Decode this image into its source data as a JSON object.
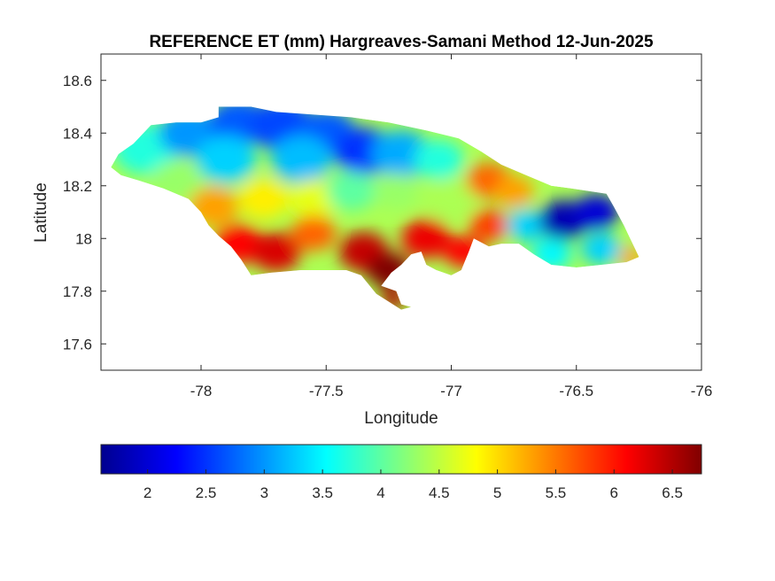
{
  "chart_data": {
    "type": "heatmap",
    "title": "REFERENCE ET (mm) Hargreaves-Samani Method  12-Jun-2025",
    "xlabel": "Longitude",
    "ylabel": "Latitude",
    "xlim": [
      -78.4,
      -76
    ],
    "ylim": [
      17.5,
      18.7
    ],
    "x_ticks": [
      "-78",
      "-77.5",
      "-77",
      "-76.5",
      "-76"
    ],
    "y_ticks": [
      "18.6",
      "18.4",
      "18.2",
      "18",
      "17.8",
      "17.6"
    ],
    "colormap": "jet",
    "colorbar": {
      "range": [
        1.6,
        6.75
      ],
      "ticks": [
        "2",
        "2.5",
        "3",
        "3.5",
        "4",
        "4.5",
        "5",
        "5.5",
        "6",
        "6.5"
      ],
      "location": "bottom"
    },
    "region_outline": [
      [
        -78.36,
        18.27
      ],
      [
        -78.33,
        18.32
      ],
      [
        -78.27,
        18.36
      ],
      [
        -78.2,
        18.43
      ],
      [
        -78.1,
        18.44
      ],
      [
        -78.0,
        18.44
      ],
      [
        -77.93,
        18.46
      ],
      [
        -77.93,
        18.5
      ],
      [
        -77.8,
        18.5
      ],
      [
        -77.7,
        18.48
      ],
      [
        -77.55,
        18.47
      ],
      [
        -77.4,
        18.46
      ],
      [
        -77.25,
        18.44
      ],
      [
        -77.1,
        18.41
      ],
      [
        -76.97,
        18.38
      ],
      [
        -76.88,
        18.33
      ],
      [
        -76.8,
        18.28
      ],
      [
        -76.7,
        18.24
      ],
      [
        -76.6,
        18.2
      ],
      [
        -76.52,
        18.19
      ],
      [
        -76.38,
        18.17
      ],
      [
        -76.35,
        18.12
      ],
      [
        -76.31,
        18.05
      ],
      [
        -76.28,
        17.99
      ],
      [
        -76.25,
        17.93
      ],
      [
        -76.3,
        17.91
      ],
      [
        -76.4,
        17.9
      ],
      [
        -76.5,
        17.89
      ],
      [
        -76.6,
        17.9
      ],
      [
        -76.67,
        17.94
      ],
      [
        -76.73,
        17.98
      ],
      [
        -76.8,
        17.98
      ],
      [
        -76.85,
        17.97
      ],
      [
        -76.91,
        18.0
      ],
      [
        -76.93,
        17.95
      ],
      [
        -76.96,
        17.88
      ],
      [
        -77.0,
        17.86
      ],
      [
        -77.06,
        17.88
      ],
      [
        -77.1,
        17.9
      ],
      [
        -77.12,
        17.95
      ],
      [
        -77.16,
        17.94
      ],
      [
        -77.2,
        17.9
      ],
      [
        -77.24,
        17.87
      ],
      [
        -77.28,
        17.82
      ],
      [
        -77.22,
        17.8
      ],
      [
        -77.2,
        17.75
      ],
      [
        -77.16,
        17.74
      ],
      [
        -77.2,
        17.73
      ],
      [
        -77.25,
        17.76
      ],
      [
        -77.3,
        17.79
      ],
      [
        -77.36,
        17.86
      ],
      [
        -77.42,
        17.88
      ],
      [
        -77.5,
        17.88
      ],
      [
        -77.6,
        17.88
      ],
      [
        -77.72,
        17.87
      ],
      [
        -77.8,
        17.86
      ],
      [
        -77.84,
        17.92
      ],
      [
        -77.88,
        17.97
      ],
      [
        -77.93,
        18.01
      ],
      [
        -77.97,
        18.05
      ],
      [
        -78.0,
        18.1
      ],
      [
        -78.05,
        18.15
      ],
      [
        -78.15,
        18.19
      ],
      [
        -78.25,
        18.22
      ],
      [
        -78.32,
        18.24
      ]
    ],
    "blobs": [
      {
        "lon": -78.22,
        "lat": 18.34,
        "value": 3.7,
        "r": 0.13
      },
      {
        "lon": -78.05,
        "lat": 18.4,
        "value": 3.0,
        "r": 0.12
      },
      {
        "lon": -77.85,
        "lat": 18.44,
        "value": 2.7,
        "r": 0.12
      },
      {
        "lon": -77.68,
        "lat": 18.43,
        "value": 2.6,
        "r": 0.13
      },
      {
        "lon": -77.5,
        "lat": 18.4,
        "value": 2.7,
        "r": 0.12
      },
      {
        "lon": -77.35,
        "lat": 18.33,
        "value": 2.5,
        "r": 0.12
      },
      {
        "lon": -77.2,
        "lat": 18.32,
        "value": 3.1,
        "r": 0.12
      },
      {
        "lon": -77.05,
        "lat": 18.3,
        "value": 3.7,
        "r": 0.1
      },
      {
        "lon": -77.9,
        "lat": 18.3,
        "value": 3.3,
        "r": 0.12
      },
      {
        "lon": -77.6,
        "lat": 18.3,
        "value": 3.2,
        "r": 0.12
      },
      {
        "lon": -78.1,
        "lat": 18.22,
        "value": 4.3,
        "r": 0.1
      },
      {
        "lon": -77.95,
        "lat": 18.12,
        "value": 5.3,
        "r": 0.1
      },
      {
        "lon": -77.75,
        "lat": 18.15,
        "value": 4.9,
        "r": 0.1
      },
      {
        "lon": -77.55,
        "lat": 18.15,
        "value": 4.7,
        "r": 0.1
      },
      {
        "lon": -77.4,
        "lat": 18.18,
        "value": 4.0,
        "r": 0.1
      },
      {
        "lon": -77.22,
        "lat": 18.18,
        "value": 4.3,
        "r": 0.09
      },
      {
        "lon": -77.0,
        "lat": 18.15,
        "value": 4.4,
        "r": 0.1
      },
      {
        "lon": -76.85,
        "lat": 18.22,
        "value": 5.6,
        "r": 0.09
      },
      {
        "lon": -76.75,
        "lat": 18.18,
        "value": 5.3,
        "r": 0.08
      },
      {
        "lon": -77.85,
        "lat": 17.98,
        "value": 6.1,
        "r": 0.1
      },
      {
        "lon": -77.7,
        "lat": 17.95,
        "value": 6.3,
        "r": 0.1
      },
      {
        "lon": -77.55,
        "lat": 18.02,
        "value": 5.6,
        "r": 0.09
      },
      {
        "lon": -77.35,
        "lat": 17.95,
        "value": 6.4,
        "r": 0.1
      },
      {
        "lon": -77.25,
        "lat": 17.88,
        "value": 6.75,
        "r": 0.09
      },
      {
        "lon": -77.1,
        "lat": 18.0,
        "value": 6.2,
        "r": 0.1
      },
      {
        "lon": -76.95,
        "lat": 17.95,
        "value": 6.1,
        "r": 0.08
      },
      {
        "lon": -77.23,
        "lat": 17.77,
        "value": 6.5,
        "r": 0.05
      },
      {
        "lon": -76.85,
        "lat": 18.05,
        "value": 5.8,
        "r": 0.08
      },
      {
        "lon": -76.7,
        "lat": 18.05,
        "value": 3.3,
        "r": 0.08
      },
      {
        "lon": -76.55,
        "lat": 18.07,
        "value": 1.8,
        "r": 0.1
      },
      {
        "lon": -76.42,
        "lat": 18.1,
        "value": 2.0,
        "r": 0.09
      },
      {
        "lon": -76.6,
        "lat": 17.94,
        "value": 3.5,
        "r": 0.08
      },
      {
        "lon": -76.4,
        "lat": 17.96,
        "value": 3.3,
        "r": 0.08
      },
      {
        "lon": -76.28,
        "lat": 17.93,
        "value": 5.3,
        "r": 0.05
      }
    ]
  }
}
